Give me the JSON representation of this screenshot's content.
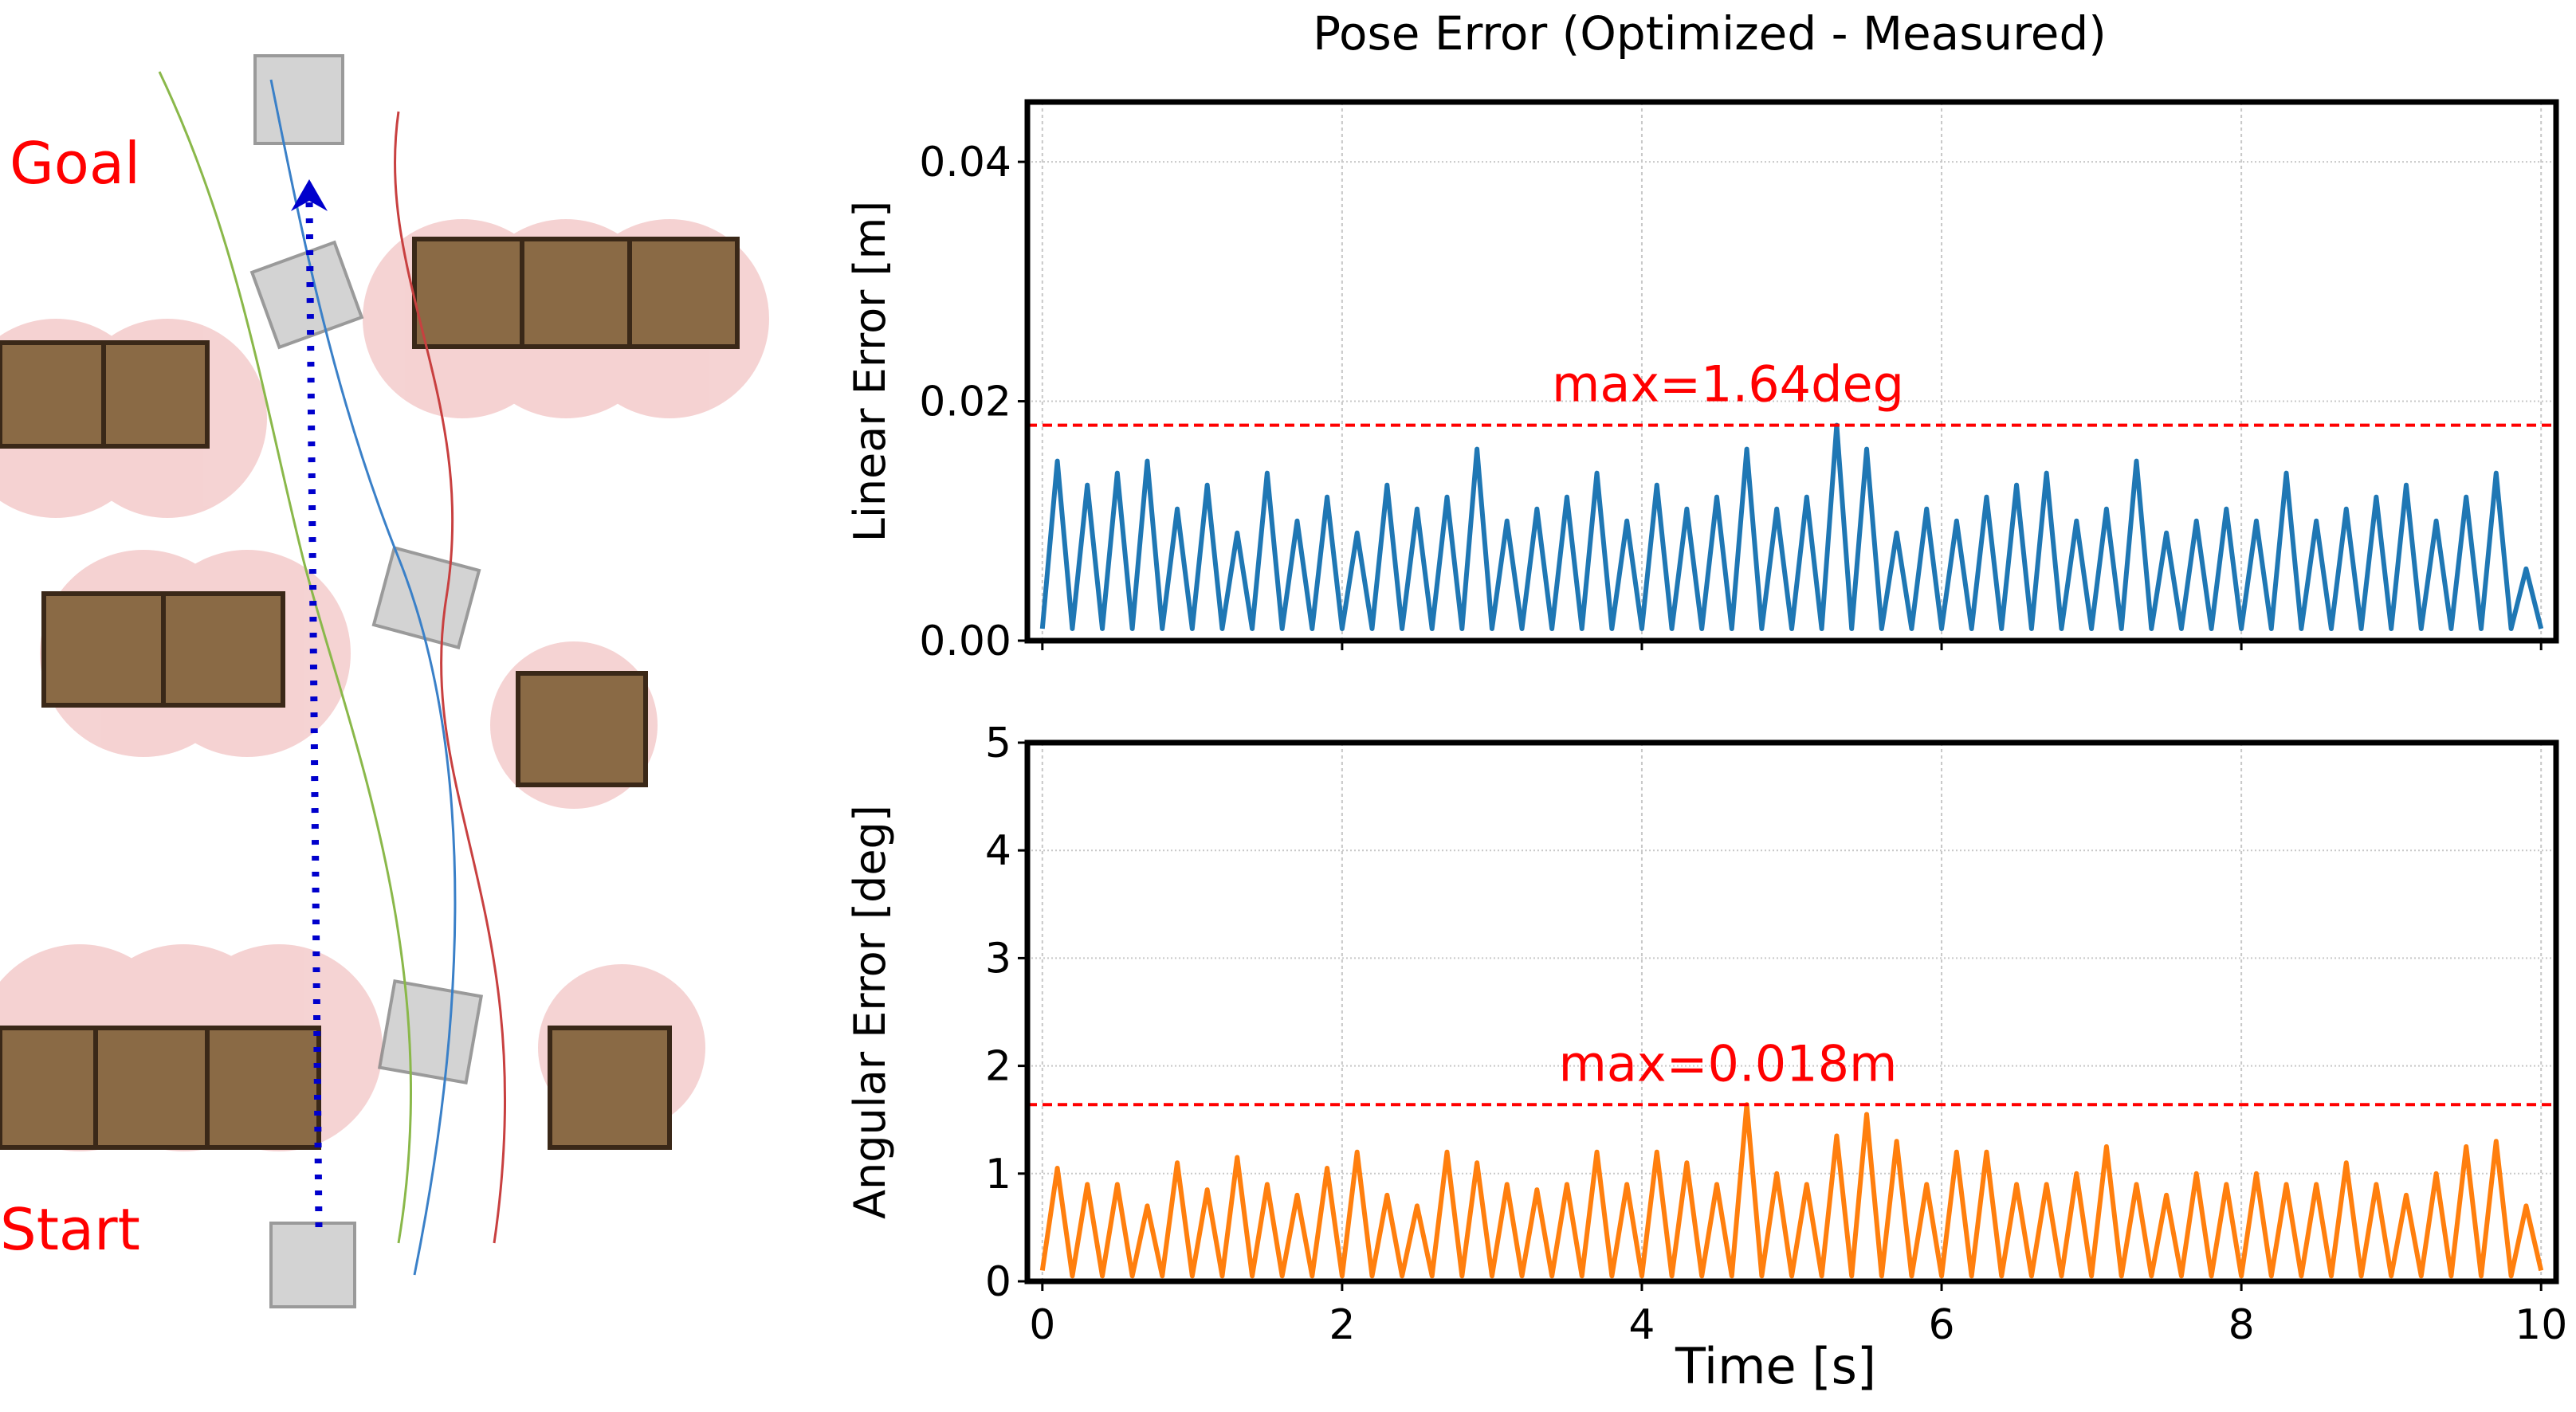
{
  "scene": {
    "goal_label": "Goal",
    "start_label": "Start",
    "label_color": "#ff0000",
    "path_color": "#0000cc"
  },
  "figure_title": "Pose Error (Optimized - Measured)",
  "chart_data": [
    {
      "type": "line",
      "ylabel": "Linear Error [m]",
      "xlabel": "",
      "xlim": [
        -0.1,
        10.1
      ],
      "ylim": [
        0,
        0.045
      ],
      "yticks": [
        "0.00",
        "0.02",
        "0.04"
      ],
      "ytick_values": [
        0,
        0.02,
        0.04
      ],
      "xtick_values": [
        0,
        2,
        4,
        6,
        8,
        10
      ],
      "grid": true,
      "color": "#1f77b4",
      "hline": {
        "value": 0.018,
        "color": "#ff0000",
        "style": "dashed"
      },
      "annotation": "max=1.64deg",
      "x": [
        0,
        0.1,
        0.2,
        0.3,
        0.4,
        0.5,
        0.6,
        0.7,
        0.8,
        0.9,
        1,
        1.1,
        1.2,
        1.3,
        1.4,
        1.5,
        1.6,
        1.7,
        1.8,
        1.9,
        2,
        2.1,
        2.2,
        2.3,
        2.4,
        2.5,
        2.6,
        2.7,
        2.8,
        2.9,
        3,
        3.1,
        3.2,
        3.3,
        3.4,
        3.5,
        3.6,
        3.7,
        3.8,
        3.9,
        4,
        4.1,
        4.2,
        4.3,
        4.4,
        4.5,
        4.6,
        4.7,
        4.8,
        4.9,
        5,
        5.1,
        5.2,
        5.3,
        5.4,
        5.5,
        5.6,
        5.7,
        5.8,
        5.9,
        6,
        6.1,
        6.2,
        6.3,
        6.4,
        6.5,
        6.6,
        6.7,
        6.8,
        6.9,
        7,
        7.1,
        7.2,
        7.3,
        7.4,
        7.5,
        7.6,
        7.7,
        7.8,
        7.9,
        8,
        8.1,
        8.2,
        8.3,
        8.4,
        8.5,
        8.6,
        8.7,
        8.8,
        8.9,
        9,
        9.1,
        9.2,
        9.3,
        9.4,
        9.5,
        9.6,
        9.7,
        9.8,
        9.9,
        10
      ],
      "values": [
        0.001,
        0.015,
        0.001,
        0.013,
        0.001,
        0.014,
        0.001,
        0.015,
        0.001,
        0.011,
        0.001,
        0.013,
        0.001,
        0.009,
        0.001,
        0.014,
        0.001,
        0.01,
        0.001,
        0.012,
        0.001,
        0.009,
        0.001,
        0.013,
        0.001,
        0.011,
        0.001,
        0.012,
        0.001,
        0.016,
        0.001,
        0.01,
        0.001,
        0.011,
        0.001,
        0.012,
        0.001,
        0.014,
        0.001,
        0.01,
        0.001,
        0.013,
        0.001,
        0.011,
        0.001,
        0.012,
        0.001,
        0.016,
        0.001,
        0.011,
        0.001,
        0.012,
        0.001,
        0.018,
        0.001,
        0.016,
        0.001,
        0.009,
        0.001,
        0.011,
        0.001,
        0.01,
        0.001,
        0.012,
        0.001,
        0.013,
        0.001,
        0.014,
        0.001,
        0.01,
        0.001,
        0.011,
        0.001,
        0.015,
        0.001,
        0.009,
        0.001,
        0.01,
        0.001,
        0.011,
        0.001,
        0.01,
        0.001,
        0.014,
        0.001,
        0.01,
        0.001,
        0.011,
        0.001,
        0.012,
        0.001,
        0.013,
        0.001,
        0.01,
        0.001,
        0.012,
        0.001,
        0.014,
        0.001,
        0.006,
        0.001
      ]
    },
    {
      "type": "line",
      "ylabel": "Angular Error [deg]",
      "xlabel": "Time [s]",
      "xlim": [
        -0.1,
        10.1
      ],
      "ylim": [
        0,
        5
      ],
      "yticks": [
        "0",
        "1",
        "2",
        "3",
        "4",
        "5"
      ],
      "ytick_values": [
        0,
        1,
        2,
        3,
        4,
        5
      ],
      "xticks": [
        "0",
        "2",
        "4",
        "6",
        "8",
        "10"
      ],
      "xtick_values": [
        0,
        2,
        4,
        6,
        8,
        10
      ],
      "grid": true,
      "color": "#ff7f0e",
      "hline": {
        "value": 1.64,
        "color": "#ff0000",
        "style": "dashed"
      },
      "annotation": "max=0.018m",
      "x": [
        0,
        0.1,
        0.2,
        0.3,
        0.4,
        0.5,
        0.6,
        0.7,
        0.8,
        0.9,
        1,
        1.1,
        1.2,
        1.3,
        1.4,
        1.5,
        1.6,
        1.7,
        1.8,
        1.9,
        2,
        2.1,
        2.2,
        2.3,
        2.4,
        2.5,
        2.6,
        2.7,
        2.8,
        2.9,
        3,
        3.1,
        3.2,
        3.3,
        3.4,
        3.5,
        3.6,
        3.7,
        3.8,
        3.9,
        4,
        4.1,
        4.2,
        4.3,
        4.4,
        4.5,
        4.6,
        4.7,
        4.8,
        4.9,
        5,
        5.1,
        5.2,
        5.3,
        5.4,
        5.5,
        5.6,
        5.7,
        5.8,
        5.9,
        6,
        6.1,
        6.2,
        6.3,
        6.4,
        6.5,
        6.6,
        6.7,
        6.8,
        6.9,
        7,
        7.1,
        7.2,
        7.3,
        7.4,
        7.5,
        7.6,
        7.7,
        7.8,
        7.9,
        8,
        8.1,
        8.2,
        8.3,
        8.4,
        8.5,
        8.6,
        8.7,
        8.8,
        8.9,
        9,
        9.1,
        9.2,
        9.3,
        9.4,
        9.5,
        9.6,
        9.7,
        9.8,
        9.9,
        10
      ],
      "values": [
        0.1,
        1.05,
        0.05,
        0.9,
        0.05,
        0.9,
        0.05,
        0.7,
        0.05,
        1.1,
        0.05,
        0.85,
        0.05,
        1.15,
        0.05,
        0.9,
        0.05,
        0.8,
        0.05,
        1.05,
        0.05,
        1.2,
        0.05,
        0.8,
        0.05,
        0.7,
        0.05,
        1.2,
        0.05,
        1.1,
        0.05,
        0.9,
        0.05,
        0.85,
        0.05,
        0.9,
        0.05,
        1.2,
        0.05,
        0.9,
        0.05,
        1.2,
        0.05,
        1.1,
        0.05,
        0.9,
        0.05,
        1.64,
        0.05,
        1.0,
        0.05,
        0.9,
        0.05,
        1.35,
        0.05,
        1.55,
        0.05,
        1.3,
        0.05,
        0.9,
        0.05,
        1.2,
        0.05,
        1.2,
        0.05,
        0.9,
        0.05,
        0.9,
        0.05,
        1.0,
        0.05,
        1.25,
        0.05,
        0.9,
        0.05,
        0.8,
        0.05,
        1.0,
        0.05,
        0.9,
        0.05,
        1.0,
        0.05,
        0.9,
        0.05,
        0.9,
        0.05,
        1.1,
        0.05,
        0.9,
        0.05,
        0.8,
        0.05,
        1.0,
        0.05,
        1.25,
        0.05,
        1.3,
        0.05,
        0.7,
        0.1
      ]
    }
  ]
}
